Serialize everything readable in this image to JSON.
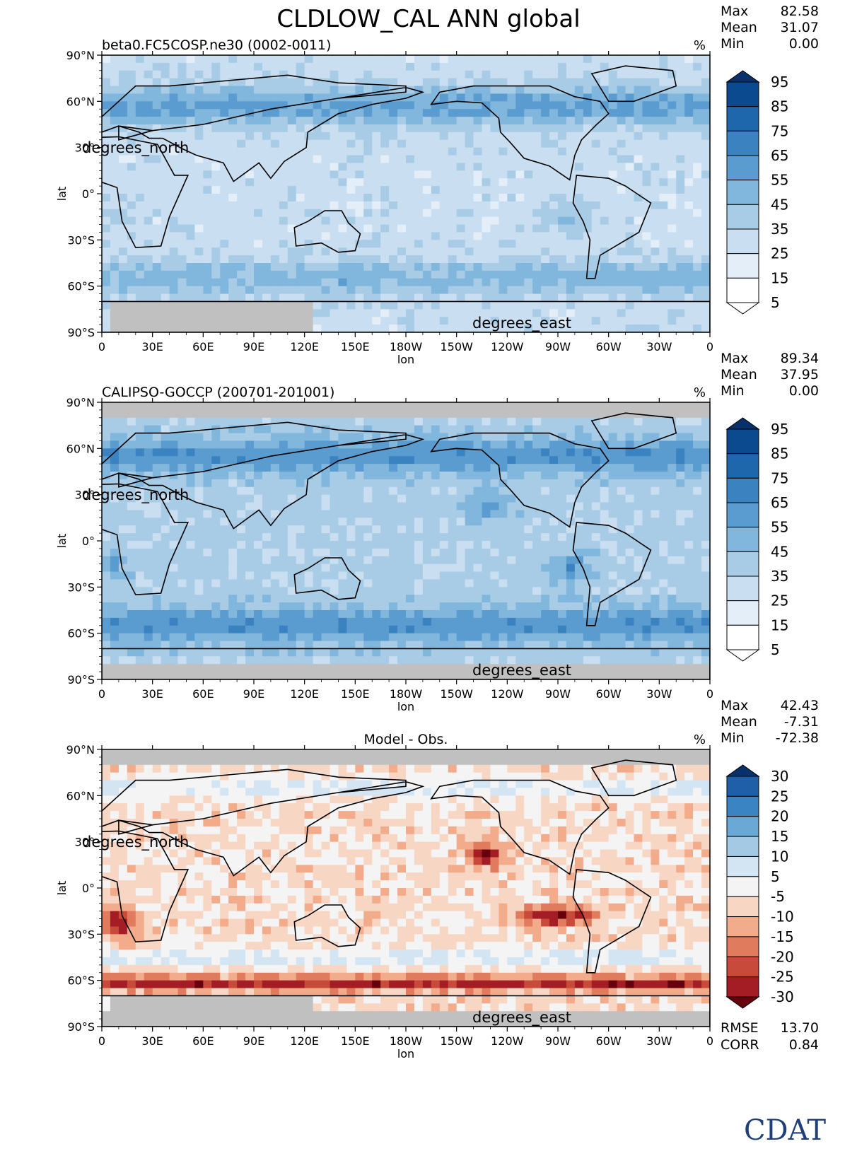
{
  "figure": {
    "title": "CLDLOW_CAL ANN global",
    "logo_text": "CDAT",
    "xtick_labels": [
      "0",
      "30E",
      "60E",
      "90E",
      "120E",
      "150E",
      "180W",
      "150W",
      "120W",
      "90W",
      "60W",
      "30W",
      "0"
    ],
    "ytick_labels": [
      "90°N",
      "60°N",
      "30°",
      "0°",
      "30°S",
      "60°S",
      "90°S"
    ],
    "xlabel": "lon",
    "ylabel": "lat",
    "lat_units": "degrees_north",
    "lon_units": "degrees_east",
    "missing_color": "#c0c0c0"
  },
  "chart_data": [
    {
      "type": "heatmap",
      "title": "beta0.FC5COSP.ne30 (0002-0011)",
      "units": "%",
      "stats": [
        {
          "label": "Max",
          "value": "82.58"
        },
        {
          "label": "Mean",
          "value": "31.07"
        },
        {
          "label": "Min",
          "value": "0.00"
        }
      ],
      "colorbar": {
        "labels": [
          "95",
          "85",
          "75",
          "65",
          "55",
          "45",
          "35",
          "25",
          "15",
          "5"
        ],
        "colors": [
          "#08306b",
          "#0b4a8f",
          "#1f67ad",
          "#3a82c0",
          "#5a9cd0",
          "#81b7dd",
          "#a8cce6",
          "#c9def0",
          "#e3eef8",
          "#ffffff"
        ]
      },
      "lon_range": [
        0,
        360
      ],
      "lat_range": [
        -90,
        90
      ]
    },
    {
      "type": "heatmap",
      "title": "CALIPSO-GOCCP (200701-201001)",
      "units": "%",
      "stats": [
        {
          "label": "Max",
          "value": "89.34"
        },
        {
          "label": "Mean",
          "value": "37.95"
        },
        {
          "label": "Min",
          "value": "0.00"
        }
      ],
      "colorbar": {
        "labels": [
          "95",
          "85",
          "75",
          "65",
          "55",
          "45",
          "35",
          "25",
          "15",
          "5"
        ],
        "colors": [
          "#08306b",
          "#0b4a8f",
          "#1f67ad",
          "#3a82c0",
          "#5a9cd0",
          "#81b7dd",
          "#a8cce6",
          "#c9def0",
          "#e3eef8",
          "#ffffff"
        ]
      },
      "lon_range": [
        0,
        360
      ],
      "lat_range": [
        -90,
        90
      ]
    },
    {
      "type": "heatmap",
      "title": "Model - Obs.",
      "units": "%",
      "stats": [
        {
          "label": "Max",
          "value": "42.43"
        },
        {
          "label": "Mean",
          "value": "-7.31"
        },
        {
          "label": "Min",
          "value": "-72.38"
        }
      ],
      "colorbar": {
        "labels": [
          "30",
          "25",
          "20",
          "15",
          "10",
          "5",
          "-5",
          "-10",
          "-15",
          "-20",
          "-25",
          "-30"
        ],
        "colors": [
          "#08306b",
          "#1f5fa8",
          "#3b84c3",
          "#6aa8d6",
          "#a3c9e5",
          "#d3e5f3",
          "#f4f4f4",
          "#f8d6c4",
          "#f2ab8b",
          "#e07b5e",
          "#c84a3a",
          "#a51d24",
          "#67000d"
        ]
      },
      "metrics": [
        {
          "label": "RMSE",
          "value": "13.70"
        },
        {
          "label": "CORR",
          "value": "0.84"
        }
      ],
      "lon_range": [
        0,
        360
      ],
      "lat_range": [
        -90,
        90
      ]
    }
  ]
}
